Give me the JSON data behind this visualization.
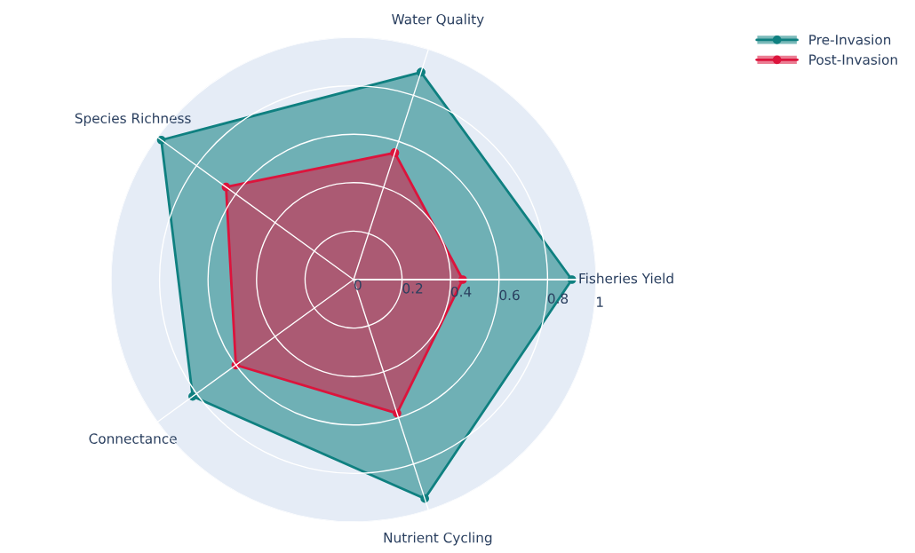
{
  "chart_data": {
    "type": "radar",
    "categories": [
      "Water Quality",
      "Fisheries Yield",
      "Nutrient Cycling",
      "Connectance",
      "Species Richness"
    ],
    "series": [
      {
        "name": "Pre-Invasion",
        "color": "#0f8080",
        "values": [
          0.9,
          0.9,
          0.95,
          0.82,
          0.98
        ]
      },
      {
        "name": "Post-Invasion",
        "color": "#dc143c",
        "values": [
          0.55,
          0.45,
          0.58,
          0.6,
          0.65
        ]
      }
    ],
    "ylim": [
      0,
      1
    ],
    "yticks": [
      0,
      0.2,
      0.4,
      0.6,
      0.8,
      1
    ],
    "grid": true,
    "legend": "top right",
    "marker": "circle"
  }
}
